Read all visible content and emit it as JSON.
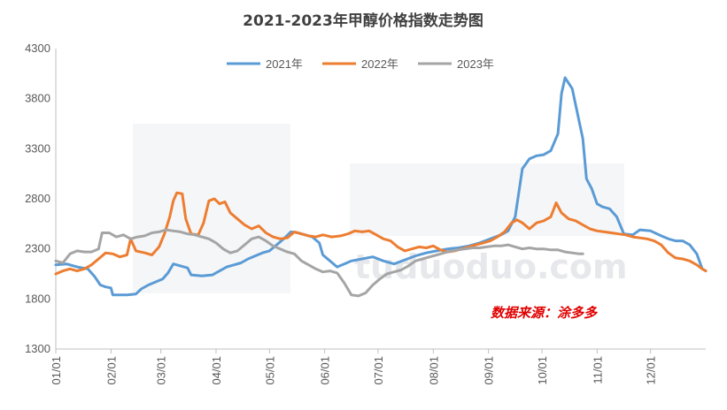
{
  "chart_data": {
    "type": "line",
    "title": "2021-2023年甲醇价格指数走势图",
    "source_note": "数据来源：涂多多",
    "watermark": "涂多多 tuduoduo.com",
    "ylim": [
      1300,
      4300
    ],
    "yticks": [
      1300,
      1800,
      2300,
      2800,
      3300,
      3800,
      4300
    ],
    "xlim": [
      0,
      365
    ],
    "xticks": [
      {
        "label": "01/01",
        "day": 0
      },
      {
        "label": "02/01",
        "day": 31
      },
      {
        "label": "03/01",
        "day": 59
      },
      {
        "label": "04/01",
        "day": 90
      },
      {
        "label": "05/01",
        "day": 120
      },
      {
        "label": "06/01",
        "day": 151
      },
      {
        "label": "07/01",
        "day": 181
      },
      {
        "label": "08/01",
        "day": 212
      },
      {
        "label": "09/01",
        "day": 243
      },
      {
        "label": "10/01",
        "day": 273
      },
      {
        "label": "11/01",
        "day": 304
      },
      {
        "label": "12/01",
        "day": 334
      }
    ],
    "legend_position": "top-center",
    "grid": false,
    "series": [
      {
        "name": "2021年",
        "color": "#5b9bd5",
        "points": [
          [
            0,
            2140
          ],
          [
            6,
            2150
          ],
          [
            12,
            2120
          ],
          [
            18,
            2100
          ],
          [
            22,
            2020
          ],
          [
            25,
            1940
          ],
          [
            28,
            1920
          ],
          [
            31,
            1910
          ],
          [
            32,
            1840
          ],
          [
            40,
            1840
          ],
          [
            45,
            1850
          ],
          [
            48,
            1900
          ],
          [
            52,
            1940
          ],
          [
            56,
            1970
          ],
          [
            60,
            2000
          ],
          [
            63,
            2060
          ],
          [
            66,
            2150
          ],
          [
            70,
            2130
          ],
          [
            74,
            2110
          ],
          [
            76,
            2040
          ],
          [
            82,
            2030
          ],
          [
            88,
            2040
          ],
          [
            92,
            2080
          ],
          [
            96,
            2120
          ],
          [
            100,
            2140
          ],
          [
            104,
            2160
          ],
          [
            108,
            2200
          ],
          [
            112,
            2230
          ],
          [
            116,
            2260
          ],
          [
            120,
            2280
          ],
          [
            124,
            2340
          ],
          [
            128,
            2400
          ],
          [
            132,
            2470
          ],
          [
            136,
            2460
          ],
          [
            140,
            2440
          ],
          [
            144,
            2420
          ],
          [
            148,
            2360
          ],
          [
            150,
            2240
          ],
          [
            154,
            2180
          ],
          [
            158,
            2120
          ],
          [
            162,
            2150
          ],
          [
            166,
            2180
          ],
          [
            172,
            2200
          ],
          [
            178,
            2220
          ],
          [
            184,
            2180
          ],
          [
            190,
            2150
          ],
          [
            196,
            2190
          ],
          [
            202,
            2230
          ],
          [
            208,
            2260
          ],
          [
            214,
            2280
          ],
          [
            220,
            2300
          ],
          [
            226,
            2310
          ],
          [
            232,
            2330
          ],
          [
            238,
            2360
          ],
          [
            244,
            2400
          ],
          [
            250,
            2440
          ],
          [
            254,
            2480
          ],
          [
            258,
            2620
          ],
          [
            262,
            3100
          ],
          [
            266,
            3200
          ],
          [
            270,
            3230
          ],
          [
            274,
            3240
          ],
          [
            278,
            3280
          ],
          [
            282,
            3450
          ],
          [
            284,
            3850
          ],
          [
            286,
            4010
          ],
          [
            290,
            3900
          ],
          [
            293,
            3650
          ],
          [
            296,
            3400
          ],
          [
            298,
            3000
          ],
          [
            301,
            2900
          ],
          [
            304,
            2750
          ],
          [
            307,
            2720
          ],
          [
            311,
            2700
          ],
          [
            315,
            2620
          ],
          [
            319,
            2450
          ],
          [
            324,
            2440
          ],
          [
            328,
            2490
          ],
          [
            334,
            2480
          ],
          [
            340,
            2430
          ],
          [
            344,
            2400
          ],
          [
            348,
            2380
          ],
          [
            352,
            2380
          ],
          [
            356,
            2340
          ],
          [
            360,
            2250
          ],
          [
            363,
            2100
          ],
          [
            365,
            2080
          ]
        ]
      },
      {
        "name": "2022年",
        "color": "#ed7d31",
        "points": [
          [
            0,
            2050
          ],
          [
            4,
            2080
          ],
          [
            8,
            2100
          ],
          [
            12,
            2080
          ],
          [
            16,
            2100
          ],
          [
            20,
            2140
          ],
          [
            24,
            2200
          ],
          [
            28,
            2260
          ],
          [
            32,
            2250
          ],
          [
            36,
            2220
          ],
          [
            40,
            2240
          ],
          [
            42,
            2400
          ],
          [
            45,
            2280
          ],
          [
            50,
            2260
          ],
          [
            54,
            2240
          ],
          [
            58,
            2320
          ],
          [
            61,
            2450
          ],
          [
            64,
            2620
          ],
          [
            66,
            2780
          ],
          [
            68,
            2860
          ],
          [
            71,
            2850
          ],
          [
            73,
            2600
          ],
          [
            76,
            2450
          ],
          [
            80,
            2440
          ],
          [
            83,
            2560
          ],
          [
            86,
            2780
          ],
          [
            89,
            2800
          ],
          [
            92,
            2750
          ],
          [
            95,
            2770
          ],
          [
            98,
            2660
          ],
          [
            102,
            2600
          ],
          [
            106,
            2540
          ],
          [
            110,
            2500
          ],
          [
            114,
            2530
          ],
          [
            118,
            2460
          ],
          [
            122,
            2420
          ],
          [
            126,
            2400
          ],
          [
            130,
            2410
          ],
          [
            134,
            2470
          ],
          [
            138,
            2450
          ],
          [
            142,
            2430
          ],
          [
            146,
            2420
          ],
          [
            150,
            2440
          ],
          [
            155,
            2420
          ],
          [
            160,
            2430
          ],
          [
            164,
            2450
          ],
          [
            168,
            2480
          ],
          [
            172,
            2470
          ],
          [
            176,
            2480
          ],
          [
            180,
            2440
          ],
          [
            184,
            2400
          ],
          [
            188,
            2380
          ],
          [
            192,
            2320
          ],
          [
            196,
            2280
          ],
          [
            200,
            2300
          ],
          [
            204,
            2320
          ],
          [
            208,
            2310
          ],
          [
            212,
            2330
          ],
          [
            216,
            2290
          ],
          [
            220,
            2270
          ],
          [
            224,
            2280
          ],
          [
            228,
            2300
          ],
          [
            232,
            2320
          ],
          [
            236,
            2340
          ],
          [
            240,
            2360
          ],
          [
            244,
            2380
          ],
          [
            248,
            2420
          ],
          [
            252,
            2470
          ],
          [
            256,
            2560
          ],
          [
            259,
            2590
          ],
          [
            262,
            2560
          ],
          [
            266,
            2500
          ],
          [
            270,
            2560
          ],
          [
            274,
            2580
          ],
          [
            278,
            2620
          ],
          [
            281,
            2760
          ],
          [
            284,
            2660
          ],
          [
            288,
            2600
          ],
          [
            292,
            2580
          ],
          [
            296,
            2540
          ],
          [
            300,
            2500
          ],
          [
            304,
            2480
          ],
          [
            308,
            2470
          ],
          [
            312,
            2460
          ],
          [
            316,
            2450
          ],
          [
            320,
            2440
          ],
          [
            324,
            2420
          ],
          [
            328,
            2410
          ],
          [
            332,
            2400
          ],
          [
            336,
            2380
          ],
          [
            340,
            2340
          ],
          [
            344,
            2260
          ],
          [
            348,
            2210
          ],
          [
            352,
            2200
          ],
          [
            356,
            2180
          ],
          [
            360,
            2140
          ],
          [
            363,
            2100
          ],
          [
            365,
            2080
          ]
        ]
      },
      {
        "name": "2023年",
        "color": "#a5a5a5",
        "points": [
          [
            0,
            2180
          ],
          [
            4,
            2160
          ],
          [
            8,
            2250
          ],
          [
            12,
            2280
          ],
          [
            16,
            2270
          ],
          [
            20,
            2270
          ],
          [
            24,
            2300
          ],
          [
            26,
            2460
          ],
          [
            30,
            2460
          ],
          [
            34,
            2420
          ],
          [
            38,
            2440
          ],
          [
            42,
            2400
          ],
          [
            46,
            2420
          ],
          [
            50,
            2430
          ],
          [
            54,
            2460
          ],
          [
            58,
            2470
          ],
          [
            62,
            2490
          ],
          [
            66,
            2480
          ],
          [
            70,
            2470
          ],
          [
            74,
            2450
          ],
          [
            78,
            2440
          ],
          [
            82,
            2420
          ],
          [
            86,
            2400
          ],
          [
            90,
            2360
          ],
          [
            94,
            2300
          ],
          [
            98,
            2260
          ],
          [
            102,
            2280
          ],
          [
            106,
            2340
          ],
          [
            110,
            2400
          ],
          [
            114,
            2420
          ],
          [
            118,
            2380
          ],
          [
            122,
            2330
          ],
          [
            126,
            2300
          ],
          [
            130,
            2270
          ],
          [
            134,
            2250
          ],
          [
            138,
            2180
          ],
          [
            142,
            2140
          ],
          [
            146,
            2100
          ],
          [
            150,
            2070
          ],
          [
            154,
            2080
          ],
          [
            158,
            2060
          ],
          [
            162,
            1960
          ],
          [
            166,
            1840
          ],
          [
            170,
            1830
          ],
          [
            174,
            1860
          ],
          [
            178,
            1940
          ],
          [
            182,
            2000
          ],
          [
            186,
            2050
          ],
          [
            190,
            2070
          ],
          [
            194,
            2090
          ],
          [
            198,
            2130
          ],
          [
            202,
            2180
          ],
          [
            206,
            2200
          ],
          [
            210,
            2220
          ],
          [
            214,
            2240
          ],
          [
            218,
            2260
          ],
          [
            222,
            2280
          ],
          [
            226,
            2290
          ],
          [
            230,
            2300
          ],
          [
            234,
            2310
          ],
          [
            238,
            2310
          ],
          [
            242,
            2320
          ],
          [
            246,
            2330
          ],
          [
            250,
            2330
          ],
          [
            254,
            2340
          ],
          [
            258,
            2320
          ],
          [
            262,
            2300
          ],
          [
            266,
            2310
          ],
          [
            270,
            2300
          ],
          [
            274,
            2300
          ],
          [
            278,
            2290
          ],
          [
            282,
            2290
          ],
          [
            286,
            2270
          ],
          [
            290,
            2260
          ],
          [
            294,
            2250
          ],
          [
            296,
            2250
          ]
        ]
      }
    ]
  }
}
